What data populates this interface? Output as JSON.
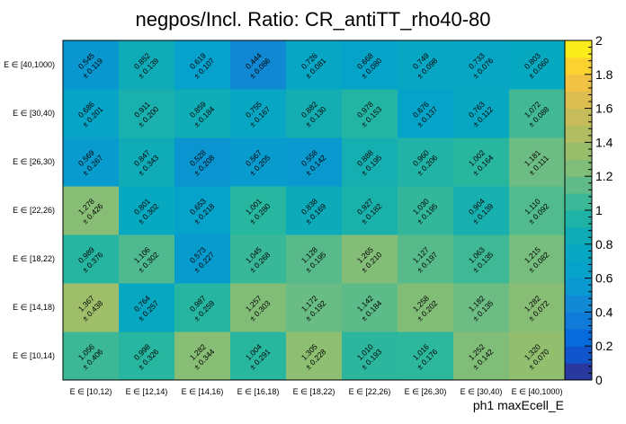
{
  "chart_data": {
    "type": "heatmap",
    "title": "negpos/Incl. Ratio: CR_antiTT_rho40-80",
    "xlabel": "ph1 maxEcell_E",
    "ylabel": "",
    "x_categories": [
      "E ∈ [10,12)",
      "E ∈ [12,14)",
      "E ∈ [14,16)",
      "E ∈ [16,18)",
      "E ∈ [18,22)",
      "E ∈ [22,26)",
      "E ∈ [26,30)",
      "E ∈ [30,40)",
      "E ∈ [40,1000)"
    ],
    "y_categories": [
      "E ∈ [10,14)",
      "E ∈ [14,18)",
      "E ∈ [18,22)",
      "E ∈ [22,26)",
      "E ∈ [26,30)",
      "E ∈ [30,40)",
      "E ∈ [40,1000)"
    ],
    "values": [
      [
        1.056,
        0.998,
        1.282,
        1.004,
        1.305,
        1.01,
        1.016,
        1.252,
        1.32
      ],
      [
        1.367,
        0.764,
        0.987,
        1.257,
        1.172,
        1.142,
        1.258,
        1.182,
        1.282
      ],
      [
        0.989,
        1.106,
        0.573,
        1.045,
        1.128,
        1.265,
        1.127,
        1.063,
        1.215
      ],
      [
        1.278,
        0.801,
        0.653,
        1.001,
        0.838,
        0.927,
        1.03,
        0.904,
        1.11
      ],
      [
        0.569,
        0.847,
        0.528,
        0.567,
        0.558,
        0.888,
        0.96,
        1.002,
        1.181
      ],
      [
        0.686,
        0.911,
        0.859,
        0.755,
        0.882,
        0.978,
        0.676,
        0.763,
        1.072
      ],
      [
        0.545,
        0.852,
        0.619,
        0.444,
        0.726,
        0.668,
        0.749,
        0.733,
        0.803
      ]
    ],
    "errors": [
      [
        0.406,
        0.326,
        0.344,
        0.291,
        0.228,
        0.193,
        0.176,
        0.142,
        0.07
      ],
      [
        0.438,
        0.257,
        0.259,
        0.303,
        0.192,
        0.184,
        0.202,
        0.135,
        0.072
      ],
      [
        0.376,
        0.302,
        0.227,
        0.268,
        0.195,
        0.21,
        0.197,
        0.135,
        0.082
      ],
      [
        0.426,
        0.302,
        0.218,
        0.28,
        0.169,
        0.182,
        0.195,
        0.139,
        0.092
      ],
      [
        0.267,
        0.343,
        0.208,
        0.205,
        0.142,
        0.195,
        0.206,
        0.164,
        0.111
      ],
      [
        0.201,
        0.2,
        0.184,
        0.167,
        0.13,
        0.153,
        0.137,
        0.112,
        0.088
      ],
      [
        0.119,
        0.139,
        0.107,
        0.086,
        0.081,
        0.08,
        0.098,
        0.076,
        0.06
      ]
    ],
    "error_prefix": "± ",
    "zlim": [
      0,
      2
    ],
    "colorbar_ticks": [
      "0",
      "0.2",
      "0.4",
      "0.6",
      "0.8",
      "1",
      "1.2",
      "1.4",
      "1.6",
      "1.8",
      "2"
    ],
    "colormap": "parula",
    "grid": false,
    "legend": "colorbar-right"
  }
}
